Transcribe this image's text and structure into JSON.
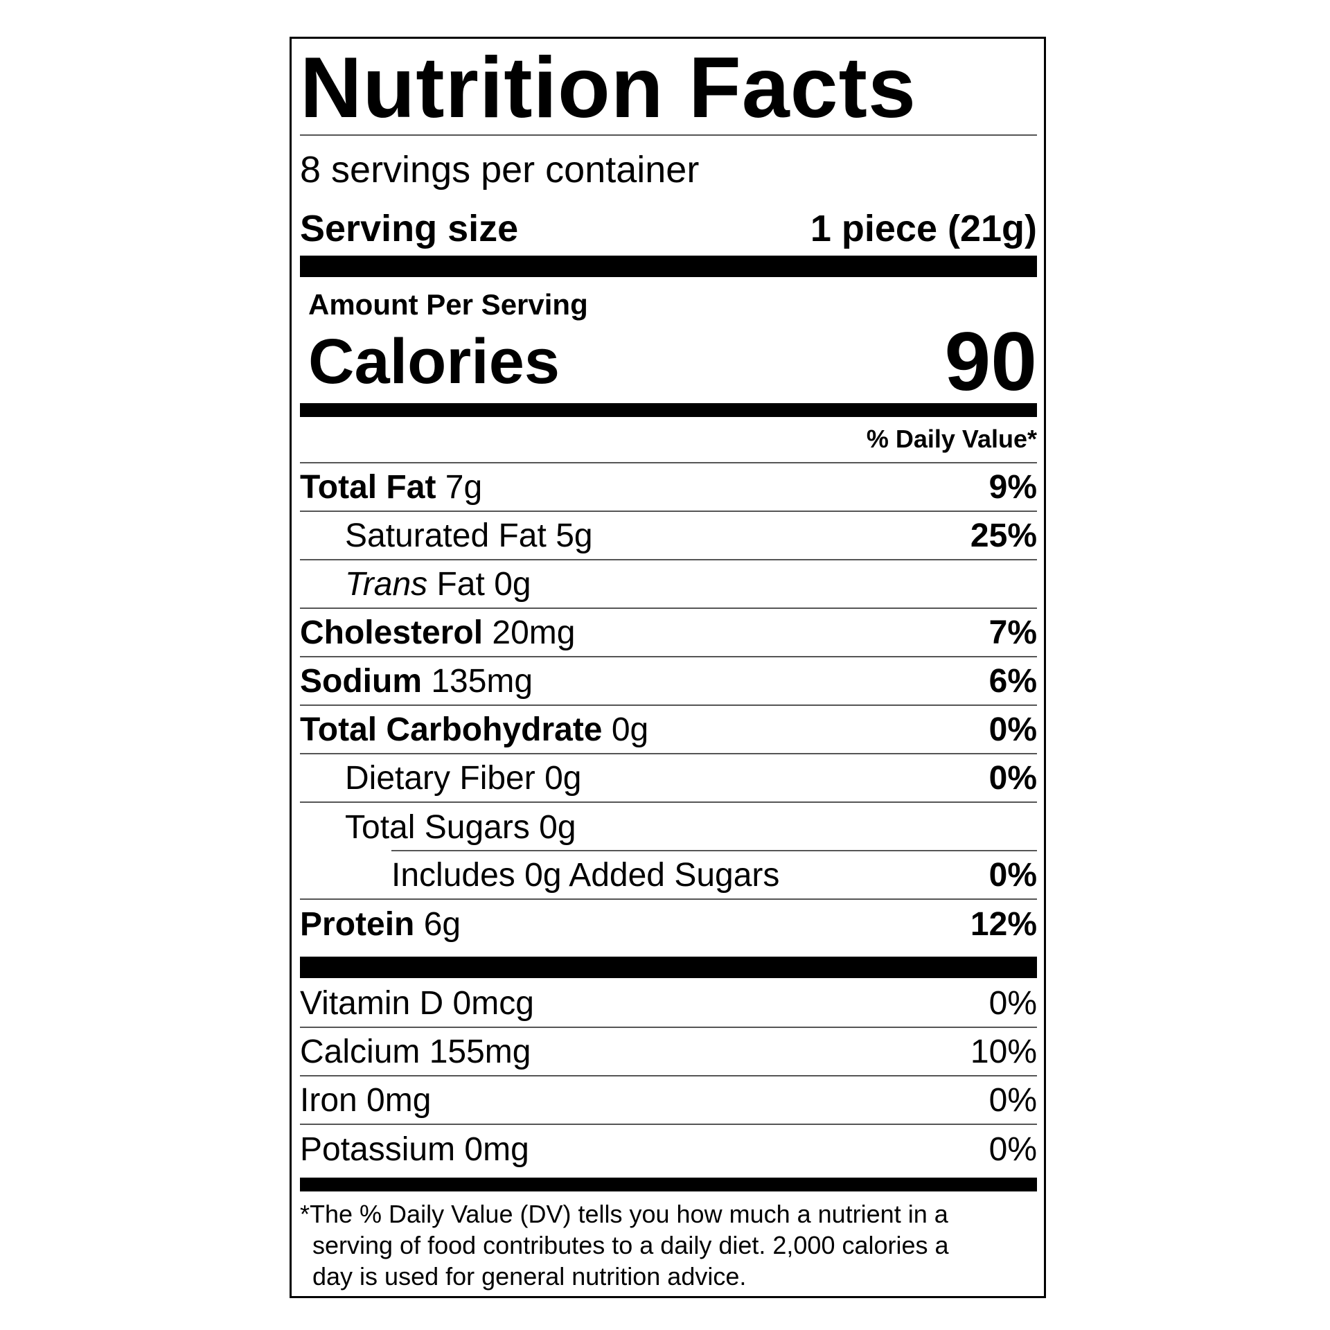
{
  "title": "Nutrition Facts",
  "servings_per_container": "8 servings per container",
  "serving_size": {
    "label": "Serving size",
    "value": "1 piece (21g)"
  },
  "amount_per_serving": "Amount Per Serving",
  "calories": {
    "label": "Calories",
    "value": "90"
  },
  "daily_value_header": "% Daily Value*",
  "nutrients": [
    {
      "name": "Total Fat",
      "amount": "7g",
      "dv": "9%"
    },
    {
      "name": "Saturated Fat",
      "amount": "5g",
      "dv": "25%"
    },
    {
      "name_italic": "Trans",
      "name": "Fat",
      "amount": "0g",
      "dv": ""
    },
    {
      "name": "Cholesterol",
      "amount": "20mg",
      "dv": "7%"
    },
    {
      "name": "Sodium",
      "amount": "135mg",
      "dv": "6%"
    },
    {
      "name": "Total Carbohydrate",
      "amount": "0g",
      "dv": "0%"
    },
    {
      "name": "Dietary Fiber",
      "amount": "0g",
      "dv": "0%"
    },
    {
      "name": "Total Sugars",
      "amount": "0g",
      "dv": ""
    },
    {
      "name": "Includes 0g Added Sugars",
      "dv": "0%"
    },
    {
      "name": "Protein",
      "amount": "6g",
      "dv": "12%"
    }
  ],
  "vitamins": [
    {
      "name": "Vitamin D 0mcg",
      "dv": "0%"
    },
    {
      "name": "Calcium 155mg",
      "dv": "10%"
    },
    {
      "name": "Iron 0mg",
      "dv": "0%"
    },
    {
      "name": "Potassium 0mg",
      "dv": "0%"
    }
  ],
  "footnote": [
    "*The % Daily Value (DV) tells you how much a nutrient in a",
    "serving of food contributes to a daily diet. 2,000 calories a",
    "day is used for general nutrition advice."
  ]
}
